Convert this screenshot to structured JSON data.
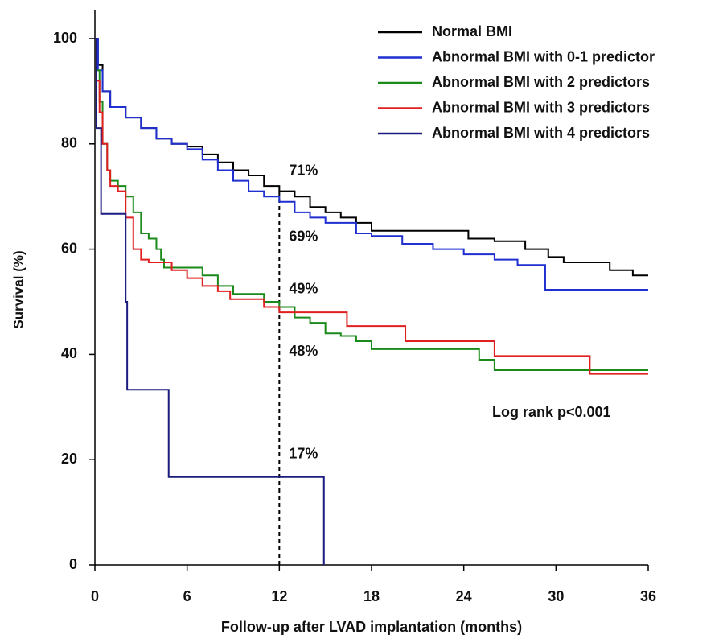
{
  "chart_data": {
    "type": "line",
    "drawstyle": "steps-post",
    "xlabel": "Follow-up after LVAD implantation (months)",
    "ylabel": "Survival (%)",
    "xlim": [
      0,
      36
    ],
    "ylim": [
      0,
      100
    ],
    "xticks": [
      0,
      6,
      12,
      18,
      24,
      30,
      36
    ],
    "yticks": [
      0,
      20,
      40,
      60,
      80,
      100
    ],
    "grid": false,
    "legend": "upper right",
    "reference_x": 12,
    "series": [
      {
        "name": "Normal BMI",
        "color": "#000000",
        "x": [
          0,
          0.2,
          0.5,
          1,
          2,
          3,
          4,
          5,
          6,
          7,
          8,
          9,
          10,
          11,
          12,
          13,
          14,
          15,
          16,
          17,
          18,
          24.3,
          26,
          28,
          29.5,
          30.5,
          33.5,
          35,
          36
        ],
        "values": [
          100,
          95,
          90,
          87,
          85,
          83,
          81,
          80,
          79.5,
          78,
          76.5,
          75,
          74,
          72,
          71,
          70,
          68,
          67,
          66,
          65,
          63.5,
          62,
          61.5,
          60,
          58.5,
          57.5,
          56,
          55,
          55
        ]
      },
      {
        "name": "Abnormal BMI with 0-1 predictor",
        "color": "#1f2fd0",
        "x": [
          0,
          0.2,
          0.5,
          1,
          2,
          3,
          4,
          5,
          6,
          7,
          8,
          9,
          10,
          11,
          12,
          13,
          14,
          15,
          16,
          17,
          18,
          20,
          22,
          24,
          26,
          27.5,
          29.3,
          36
        ],
        "values": [
          100,
          94,
          90,
          87,
          85,
          83,
          81,
          80,
          79,
          77,
          75,
          73,
          71,
          70,
          69,
          67,
          66,
          65,
          65,
          63,
          62.5,
          61,
          60,
          59,
          58,
          57,
          52.3,
          52.3
        ]
      },
      {
        "name": "Abnormal BMI with 2 predictors",
        "color": "#1a8a1a",
        "x": [
          0,
          0.1,
          0.3,
          0.5,
          0.8,
          1,
          1.5,
          2,
          2.5,
          3,
          3.5,
          4,
          4.3,
          4.5,
          7,
          8,
          9,
          11,
          12,
          13,
          14,
          15,
          16,
          17,
          18,
          25,
          26,
          36
        ],
        "values": [
          100,
          94,
          88,
          80,
          75,
          73,
          72,
          70,
          67,
          63,
          62,
          60,
          58,
          56.5,
          55,
          53,
          51.5,
          50,
          49,
          47,
          46,
          44,
          43.5,
          42.5,
          41,
          39,
          37,
          37
        ]
      },
      {
        "name": "Abnormal BMI with 3 predictors",
        "color": "#e02020",
        "x": [
          0,
          0.1,
          0.3,
          0.5,
          0.8,
          1,
          1.5,
          2,
          2.5,
          3,
          3.5,
          5,
          6,
          7,
          8,
          8.8,
          11,
          12,
          16.4,
          20.2,
          26,
          32.2,
          36
        ],
        "values": [
          100,
          92,
          86,
          80,
          75,
          72,
          71,
          66,
          60,
          58,
          57.5,
          56,
          54.5,
          53,
          52,
          50.5,
          49,
          48,
          45.4,
          42.5,
          39.7,
          36.3,
          36.3
        ]
      },
      {
        "name": "Abnormal BMI with 4 predictors",
        "color": "#1c1c80",
        "x": [
          0,
          0.1,
          0.4,
          2,
          2.1,
          4.8,
          14.9
        ],
        "values": [
          100,
          83,
          66.7,
          50,
          33.3,
          16.7,
          0
        ]
      }
    ],
    "annotations": [
      {
        "label": "71%",
        "value": 71
      },
      {
        "label": "69%",
        "value": 69
      },
      {
        "label": "49%",
        "value": 49
      },
      {
        "label": "48%",
        "value": 48
      },
      {
        "label": "17%",
        "value": 17
      }
    ],
    "note": "Log rank p<0.001"
  }
}
